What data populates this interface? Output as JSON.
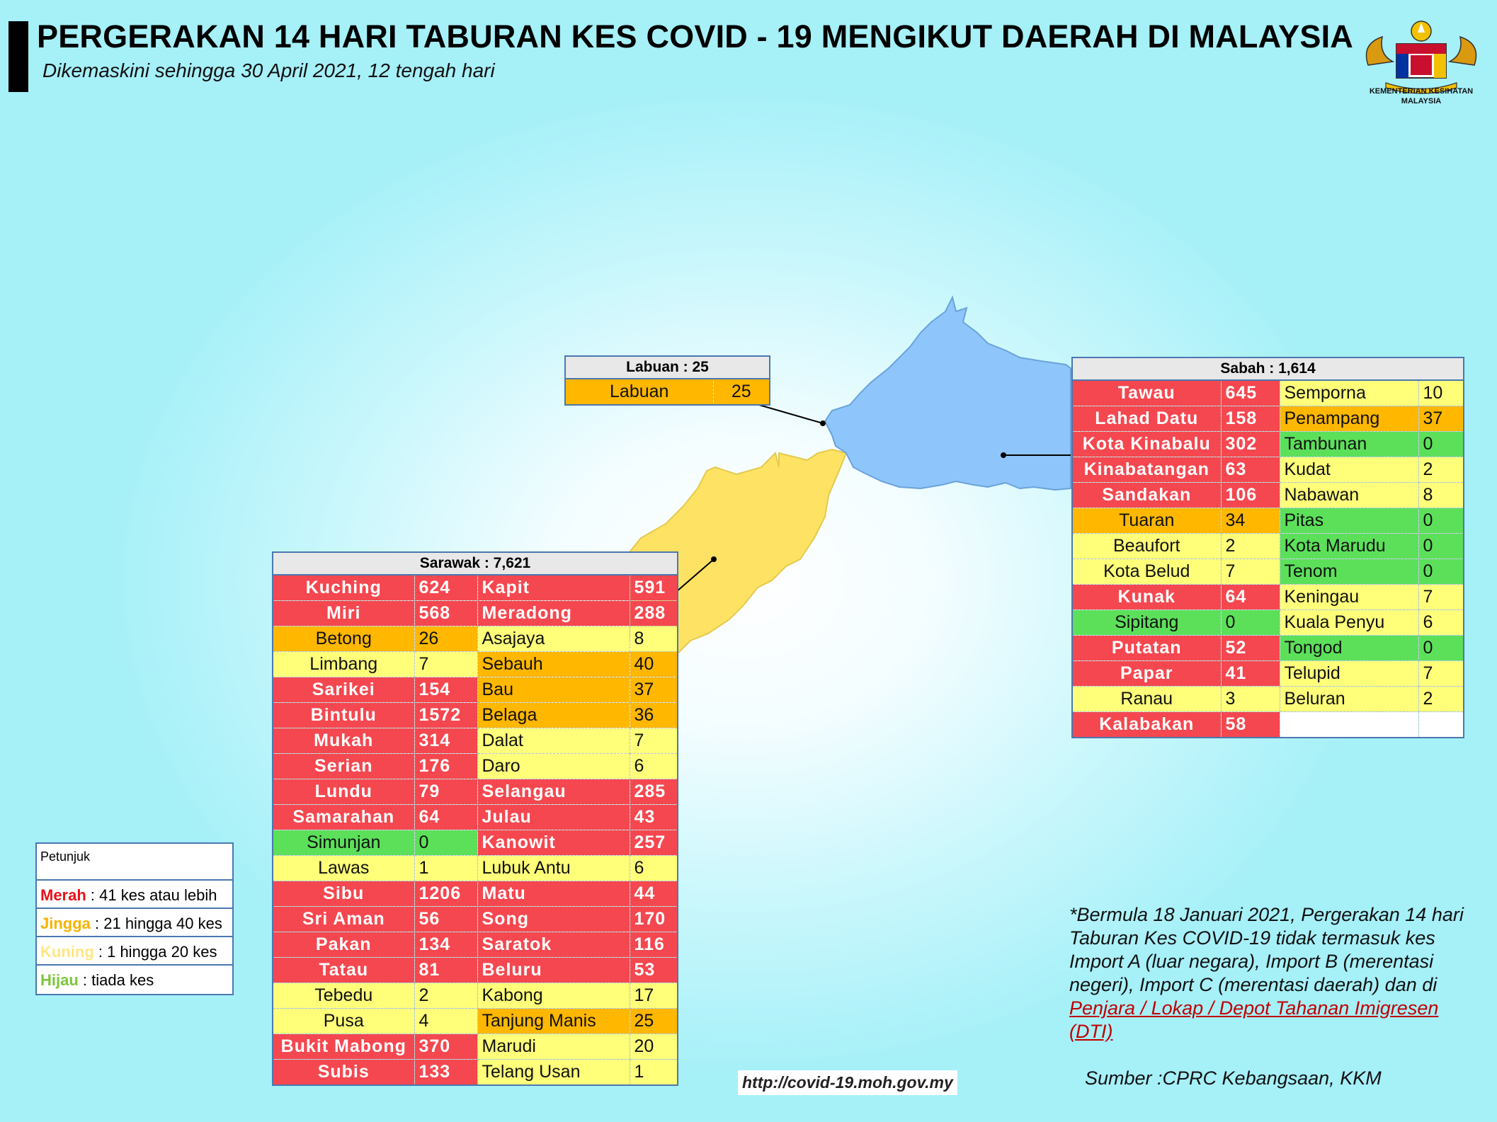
{
  "header": {
    "title": "PERGERAKAN 14 HARI TABURAN KES COVID - 19 MENGIKUT DAERAH DI MALAYSIA",
    "subtitle": "Dikemaskini sehingga 30 April 2021, 12 tengah hari"
  },
  "logo": {
    "name": "jata-negara-icon",
    "text1": "KEMENTERIAN KESIHATAN",
    "text2": "MALAYSIA"
  },
  "colors": {
    "red": "#f5474f",
    "orange": "#ffb700",
    "yellow": "#ffff7a",
    "green": "#5ce05a",
    "sabah_map": "#8ec5fa",
    "sarawak_map": "#fde264"
  },
  "labuan": {
    "header": "Labuan : 25",
    "rows": [
      {
        "name": "Labuan",
        "value": "25",
        "level": "o"
      }
    ]
  },
  "sabah": {
    "header": "Sabah : 1,614",
    "rows": [
      [
        {
          "name": "Tawau",
          "value": "645",
          "level": "r"
        },
        {
          "name": "Semporna",
          "value": "10",
          "level": "y"
        }
      ],
      [
        {
          "name": "Lahad Datu",
          "value": "158",
          "level": "r"
        },
        {
          "name": "Penampang",
          "value": "37",
          "level": "o"
        }
      ],
      [
        {
          "name": "Kota Kinabalu",
          "value": "302",
          "level": "r"
        },
        {
          "name": "Tambunan",
          "value": "0",
          "level": "g"
        }
      ],
      [
        {
          "name": "Kinabatangan",
          "value": "63",
          "level": "r"
        },
        {
          "name": "Kudat",
          "value": "2",
          "level": "y"
        }
      ],
      [
        {
          "name": "Sandakan",
          "value": "106",
          "level": "r"
        },
        {
          "name": "Nabawan",
          "value": "8",
          "level": "y"
        }
      ],
      [
        {
          "name": "Tuaran",
          "value": "34",
          "level": "o"
        },
        {
          "name": "Pitas",
          "value": "0",
          "level": "g"
        }
      ],
      [
        {
          "name": "Beaufort",
          "value": "2",
          "level": "y"
        },
        {
          "name": "Kota Marudu",
          "value": "0",
          "level": "g"
        }
      ],
      [
        {
          "name": "Kota Belud",
          "value": "7",
          "level": "y"
        },
        {
          "name": "Tenom",
          "value": "0",
          "level": "g"
        }
      ],
      [
        {
          "name": "Kunak",
          "value": "64",
          "level": "r"
        },
        {
          "name": "Keningau",
          "value": "7",
          "level": "y"
        }
      ],
      [
        {
          "name": "Sipitang",
          "value": "0",
          "level": "g"
        },
        {
          "name": "Kuala Penyu",
          "value": "6",
          "level": "y"
        }
      ],
      [
        {
          "name": "Putatan",
          "value": "52",
          "level": "r"
        },
        {
          "name": "Tongod",
          "value": "0",
          "level": "g"
        }
      ],
      [
        {
          "name": "Papar",
          "value": "41",
          "level": "r"
        },
        {
          "name": "Telupid",
          "value": "7",
          "level": "y"
        }
      ],
      [
        {
          "name": "Ranau",
          "value": "3",
          "level": "y"
        },
        {
          "name": "Beluran",
          "value": "2",
          "level": "y"
        }
      ],
      [
        {
          "name": "Kalabakan",
          "value": "58",
          "level": "r"
        },
        {
          "name": "",
          "value": "",
          "level": "e"
        }
      ]
    ]
  },
  "sarawak": {
    "header": "Sarawak : 7,621",
    "rows": [
      [
        {
          "name": "Kuching",
          "value": "624",
          "level": "r"
        },
        {
          "name": "Kapit",
          "value": "591",
          "level": "r"
        }
      ],
      [
        {
          "name": "Miri",
          "value": "568",
          "level": "r"
        },
        {
          "name": "Meradong",
          "value": "288",
          "level": "r"
        }
      ],
      [
        {
          "name": "Betong",
          "value": "26",
          "level": "o"
        },
        {
          "name": "Asajaya",
          "value": "8",
          "level": "y"
        }
      ],
      [
        {
          "name": "Limbang",
          "value": "7",
          "level": "y"
        },
        {
          "name": "Sebauh",
          "value": "40",
          "level": "o"
        }
      ],
      [
        {
          "name": "Sarikei",
          "value": "154",
          "level": "r"
        },
        {
          "name": "Bau",
          "value": "37",
          "level": "o"
        }
      ],
      [
        {
          "name": "Bintulu",
          "value": "1572",
          "level": "r"
        },
        {
          "name": "Belaga",
          "value": "36",
          "level": "o"
        }
      ],
      [
        {
          "name": "Mukah",
          "value": "314",
          "level": "r"
        },
        {
          "name": "Dalat",
          "value": "7",
          "level": "y"
        }
      ],
      [
        {
          "name": "Serian",
          "value": "176",
          "level": "r"
        },
        {
          "name": "Daro",
          "value": "6",
          "level": "y"
        }
      ],
      [
        {
          "name": "Lundu",
          "value": "79",
          "level": "r"
        },
        {
          "name": "Selangau",
          "value": "285",
          "level": "r"
        }
      ],
      [
        {
          "name": "Samarahan",
          "value": "64",
          "level": "r"
        },
        {
          "name": "Julau",
          "value": "43",
          "level": "r"
        }
      ],
      [
        {
          "name": "Simunjan",
          "value": "0",
          "level": "g"
        },
        {
          "name": "Kanowit",
          "value": "257",
          "level": "r"
        }
      ],
      [
        {
          "name": "Lawas",
          "value": "1",
          "level": "y"
        },
        {
          "name": "Lubuk Antu",
          "value": "6",
          "level": "y"
        }
      ],
      [
        {
          "name": "Sibu",
          "value": "1206",
          "level": "r"
        },
        {
          "name": "Matu",
          "value": "44",
          "level": "r"
        }
      ],
      [
        {
          "name": "Sri Aman",
          "value": "56",
          "level": "r"
        },
        {
          "name": "Song",
          "value": "170",
          "level": "r"
        }
      ],
      [
        {
          "name": "Pakan",
          "value": "134",
          "level": "r"
        },
        {
          "name": "Saratok",
          "value": "116",
          "level": "r"
        }
      ],
      [
        {
          "name": "Tatau",
          "value": "81",
          "level": "r"
        },
        {
          "name": "Beluru",
          "value": "53",
          "level": "r"
        }
      ],
      [
        {
          "name": "Tebedu",
          "value": "2",
          "level": "y"
        },
        {
          "name": "Kabong",
          "value": "17",
          "level": "y"
        }
      ],
      [
        {
          "name": "Pusa",
          "value": "4",
          "level": "y"
        },
        {
          "name": "Tanjung Manis",
          "value": "25",
          "level": "o"
        }
      ],
      [
        {
          "name": "Bukit Mabong",
          "value": "370",
          "level": "r"
        },
        {
          "name": "Marudi",
          "value": "20",
          "level": "y"
        }
      ],
      [
        {
          "name": "Subis",
          "value": "133",
          "level": "r"
        },
        {
          "name": "Telang Usan",
          "value": "1",
          "level": "y"
        }
      ]
    ]
  },
  "legend": {
    "title": "Petunjuk",
    "items": [
      {
        "key": "Merah",
        "text": " : 41 kes atau lebih",
        "color": "#e8121a"
      },
      {
        "key": "Jingga",
        "text": " : 21 hingga 40 kes",
        "color": "#f5b400"
      },
      {
        "key": "Kuning",
        "text": " : 1 hingga 20 kes",
        "color": "#ffe680"
      },
      {
        "key": "Hijau",
        "text": " : tiada kes",
        "color": "#7cc63e"
      }
    ]
  },
  "note": {
    "text": "*Bermula 18 Januari 2021, Pergerakan 14 hari Taburan Kes COVID-19 tidak termasuk kes Import A (luar negara), Import B (merentasi negeri), Import C (merentasi daerah) dan di ",
    "link": "Penjara / Lokap / Depot Tahanan Imigresen (DTI)"
  },
  "footer": {
    "url": "http://covid-19.moh.gov.my",
    "source": "Sumber :CPRC Kebangsaan,  KKM"
  }
}
